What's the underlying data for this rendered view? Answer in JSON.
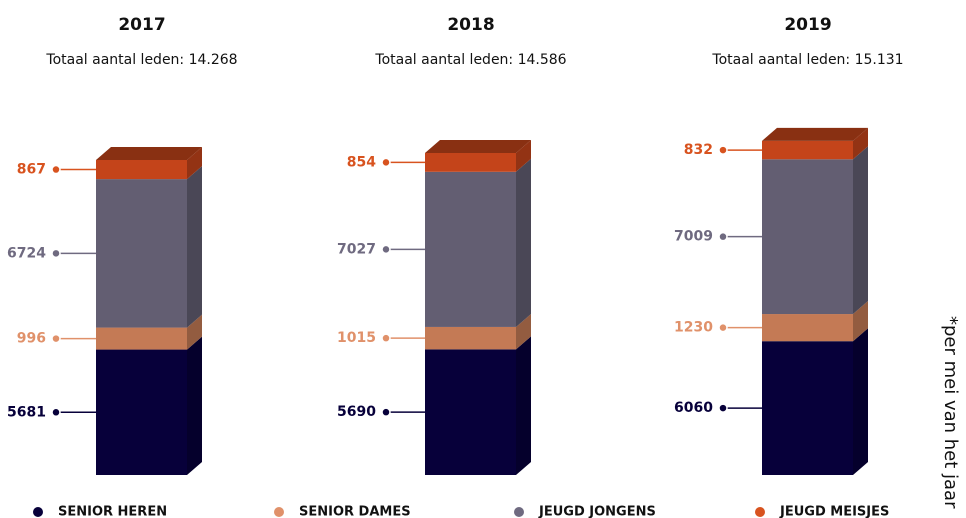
{
  "chart_data": {
    "type": "stacked_bar",
    "categories": [
      "2017",
      "2018",
      "2019"
    ],
    "subtitles": [
      "Totaal aantal leden: 14.268",
      "Totaal aantal leden: 14.586",
      "Totaal aantal leden: 15.131"
    ],
    "series": [
      {
        "name": "SENIOR HEREN",
        "color": "#07003a",
        "label_color": "#07003a",
        "values": [
          5681,
          5690,
          6060
        ]
      },
      {
        "name": "SENIOR DAMES",
        "color": "#c47a55",
        "label_color": "#e0916a",
        "values": [
          996,
          1015,
          1230
        ]
      },
      {
        "name": "JEUGD JONGENS",
        "color": "#635e72",
        "label_color": "#6f6a80",
        "values": [
          6724,
          7027,
          7009
        ]
      },
      {
        "name": "JEUGD MEISJES",
        "color": "#c4441a",
        "label_color": "#d8531f",
        "values": [
          867,
          854,
          832
        ]
      }
    ],
    "note": "*per mei van het jaar"
  }
}
